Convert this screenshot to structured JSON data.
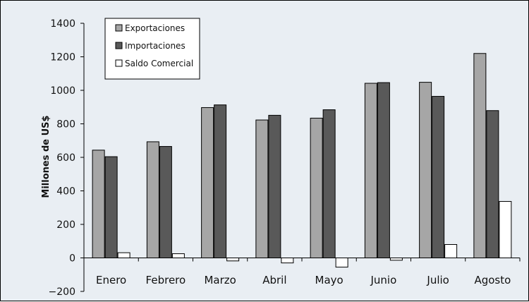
{
  "chart_data": {
    "type": "bar",
    "ylabel": "Millones de US$",
    "xlabel": "",
    "ylim": [
      -200,
      1400
    ],
    "yticks": [
      -200,
      0,
      200,
      400,
      600,
      800,
      1000,
      1200,
      1400
    ],
    "grid": false,
    "legend_position": "top-left",
    "categories": [
      "Enero",
      "Febrero",
      "Marzo",
      "Abril",
      "Mayo",
      "Junio",
      "Julio",
      "Agosto"
    ],
    "series": [
      {
        "name": "Exportaciones",
        "color": "#a6a6a6",
        "values": [
          643,
          693,
          897,
          823,
          834,
          1042,
          1048,
          1220
        ]
      },
      {
        "name": "Importaciones",
        "color": "#595959",
        "values": [
          604,
          665,
          913,
          851,
          884,
          1046,
          964,
          879
        ]
      },
      {
        "name": "Saldo Comercial",
        "color": "#ffffff",
        "values": [
          31,
          25,
          -18,
          -30,
          -55,
          -14,
          80,
          337
        ]
      }
    ]
  }
}
